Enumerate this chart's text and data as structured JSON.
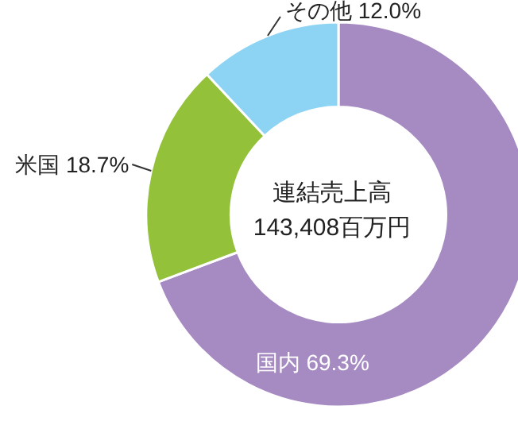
{
  "chart_data": {
    "type": "donut",
    "categories": [
      "国内",
      "米国",
      "その他"
    ],
    "values": [
      69.3,
      18.7,
      12.0
    ],
    "value_labels": [
      "69.3%",
      "18.7%",
      "12.0%"
    ],
    "colors": [
      "#a68ac2",
      "#93c13a",
      "#8dd3f4"
    ],
    "annotations": [
      "連結売上高",
      "143,408百万円"
    ]
  }
}
